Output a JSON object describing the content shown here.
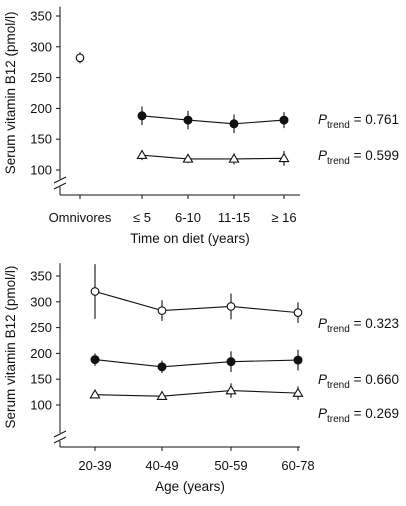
{
  "chart_data": [
    {
      "type": "scatter",
      "xlabel": "Time on diet (years)",
      "ylabel": "Serum vitamin B12 (pmol/l)",
      "categories": [
        "Omnivores",
        "≤ 5",
        "6-10",
        "11-15",
        "≥ 16"
      ],
      "yticks": [
        100,
        150,
        200,
        250,
        300,
        350
      ],
      "ylim": [
        75,
        365
      ],
      "axis_break": true,
      "series": [
        {
          "marker": "open-circle",
          "connected": false,
          "points": [
            {
              "x": "Omnivores",
              "y": 282,
              "err": 9
            }
          ]
        },
        {
          "marker": "filled-circle",
          "connected": true,
          "points": [
            {
              "x": "≤ 5",
              "y": 188,
              "err": 15
            },
            {
              "x": "6-10",
              "y": 181,
              "err": 15
            },
            {
              "x": "11-15",
              "y": 175,
              "err": 15
            },
            {
              "x": "≥ 16",
              "y": 181,
              "err": 13
            }
          ],
          "p_trend": "0.761"
        },
        {
          "marker": "open-triangle",
          "connected": true,
          "points": [
            {
              "x": "≤ 5",
              "y": 124,
              "err": 8
            },
            {
              "x": "6-10",
              "y": 118,
              "err": 7
            },
            {
              "x": "11-15",
              "y": 118,
              "err": 9
            },
            {
              "x": "≥ 16",
              "y": 119,
              "err": 12
            }
          ],
          "p_trend": "0.599"
        }
      ]
    },
    {
      "type": "scatter",
      "xlabel": "Age (years)",
      "ylabel": "Serum vitamin B12 (pmol/l)",
      "categories": [
        "20-39",
        "40-49",
        "50-59",
        "60-78"
      ],
      "yticks": [
        100,
        150,
        200,
        250,
        300,
        350
      ],
      "ylim": [
        75,
        375
      ],
      "axis_break": true,
      "series": [
        {
          "marker": "open-circle",
          "connected": true,
          "points": [
            {
              "x": "20-39",
              "y": 320,
              "err": 53
            },
            {
              "x": "40-49",
              "y": 283,
              "err": 20
            },
            {
              "x": "50-59",
              "y": 291,
              "err": 25
            },
            {
              "x": "60-78",
              "y": 279,
              "err": 20
            }
          ],
          "p_trend": "0.323"
        },
        {
          "marker": "filled-circle",
          "connected": true,
          "points": [
            {
              "x": "20-39",
              "y": 188,
              "err": 12
            },
            {
              "x": "40-49",
              "y": 174,
              "err": 12
            },
            {
              "x": "50-59",
              "y": 184,
              "err": 20
            },
            {
              "x": "60-78",
              "y": 187,
              "err": 20
            }
          ],
          "p_trend": "0.660"
        },
        {
          "marker": "open-triangle",
          "connected": true,
          "points": [
            {
              "x": "20-39",
              "y": 120,
              "err": 6
            },
            {
              "x": "40-49",
              "y": 117,
              "err": 6
            },
            {
              "x": "50-59",
              "y": 128,
              "err": 14
            },
            {
              "x": "60-78",
              "y": 123,
              "err": 13
            }
          ],
          "p_trend": "0.269"
        }
      ]
    }
  ],
  "labels": {
    "p_symbol": "P",
    "p_subscript": "trend",
    "p_equals": " = "
  }
}
